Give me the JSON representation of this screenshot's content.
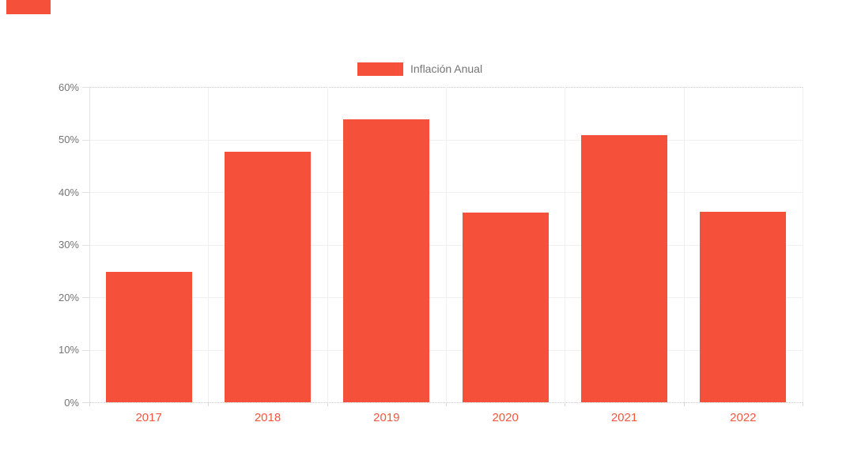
{
  "legend": {
    "label": "Inflación Anual"
  },
  "colors": {
    "bar": "#f4503a",
    "x_label": "#f4573f",
    "y_label": "#757575",
    "legend_text": "#757575",
    "grid": "#f0f0f0",
    "axis_line": "#e3e3e3",
    "tick": "#d9d9d9",
    "boundary_dotted": "#cccccc",
    "background": "#ffffff"
  },
  "chart_data": {
    "type": "bar",
    "title": "",
    "xlabel": "",
    "ylabel": "",
    "categories": [
      "2017",
      "2018",
      "2019",
      "2020",
      "2021",
      "2022"
    ],
    "series": [
      {
        "name": "Inflación Anual",
        "values": [
          24.8,
          47.6,
          53.8,
          36.1,
          50.9,
          36.2
        ]
      }
    ],
    "ylim": [
      0,
      60
    ],
    "ytick_step": 10,
    "ytick_labels": [
      "0%",
      "10%",
      "20%",
      "30%",
      "40%",
      "50%",
      "60%"
    ],
    "grid": true,
    "legend_position": "top-center"
  }
}
